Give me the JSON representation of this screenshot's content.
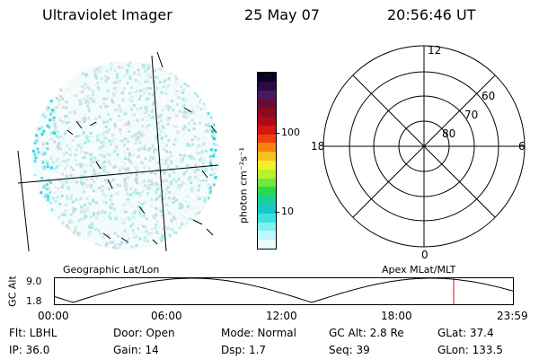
{
  "header": {
    "instrument": "Ultraviolet Imager",
    "date": "25 May 07",
    "time": "20:56:46 UT"
  },
  "colorbar": {
    "label": "photon cm⁻²s⁻¹",
    "ticks": [
      "100",
      "10"
    ],
    "colors": [
      "#0a0028",
      "#2a0a48",
      "#4a1a60",
      "#6a0a3a",
      "#8a0a20",
      "#b00818",
      "#d81810",
      "#f04010",
      "#f88010",
      "#f8c018",
      "#f0f028",
      "#b8f030",
      "#70e840",
      "#30d848",
      "#18d098",
      "#18c8c8",
      "#40e0e0",
      "#80f0f0",
      "#c0f8f8",
      "#e8fcfc"
    ]
  },
  "polar_plot": {
    "mlt_labels": {
      "top": "12",
      "left": "18",
      "right": "6",
      "bottom": "0"
    },
    "lat_labels": [
      "60",
      "70",
      "80"
    ]
  },
  "timeline": {
    "axis_label": "GC Alt",
    "y_ticks": [
      "9.0",
      "1.8"
    ],
    "left_caption": "Geographic Lat/Lon",
    "right_caption": "Apex MLat/MLT",
    "x_ticks": [
      "00:00",
      "06:00",
      "12:00",
      "18:00",
      "23:59"
    ],
    "current_marker_color": "#d01010"
  },
  "status": {
    "row1": {
      "flt": "Flt: LBHL",
      "door": "Door: Open",
      "mode": "Mode: Normal",
      "gcalt": "GC Alt: 2.8 Re",
      "glat": "GLat:  37.4"
    },
    "row2": {
      "ip": "IP: 36.0",
      "gain": "Gain: 14",
      "dsp": "Dsp:    1.7",
      "seq": "Seq: 39",
      "glon": "GLon: 133.5"
    }
  }
}
